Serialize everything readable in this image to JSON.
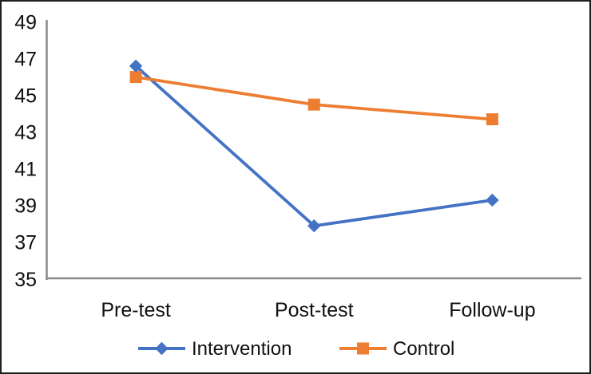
{
  "window": {
    "background_color": "#ffffff",
    "border_color": "#1f1f1f"
  },
  "chart_data": {
    "type": "line",
    "title": "",
    "xlabel": "",
    "ylabel": "",
    "categories": [
      "Pre-test",
      "Post-test",
      "Follow-up"
    ],
    "series": [
      {
        "name": "Intervention",
        "marker": "diamond",
        "color": "#4472C4",
        "values": [
          46.6,
          37.9,
          39.3
        ]
      },
      {
        "name": "Control",
        "marker": "square",
        "color": "#ED7D31",
        "values": [
          46.0,
          44.5,
          43.7
        ]
      }
    ],
    "ylim": [
      35,
      49
    ],
    "yticks": [
      35,
      37,
      39,
      41,
      43,
      45,
      47,
      49
    ],
    "grid": false,
    "legend_position": "bottom",
    "axis_color": "#8a8a8a",
    "text_color": "#111111"
  }
}
